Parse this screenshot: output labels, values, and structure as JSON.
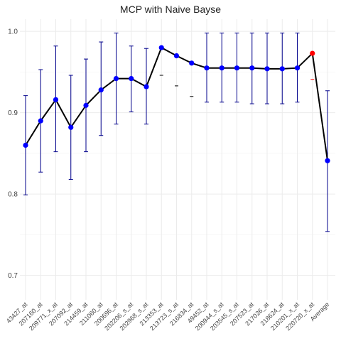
{
  "chart_data": {
    "type": "line",
    "title": "MCP with Naive Bayse",
    "xlabel": "",
    "ylabel": "",
    "ylim": [
      0.67,
      1.015
    ],
    "y_ticks": [
      0.7,
      0.8,
      0.9,
      1.0
    ],
    "y_tick_labels": [
      "0.7",
      "0.8",
      "0.9",
      "1.0"
    ],
    "grid": true,
    "categories": [
      "43427_at",
      "207160_at",
      "209771_x_at",
      "207092_at",
      "214459_at",
      "211060_at",
      "200696_at",
      "202206_s_at",
      "202968_s_at",
      "213353_at",
      "213723_s_at",
      "216834_at",
      "49452_at",
      "200944_s_at",
      "203545_s_at",
      "207523_at",
      "217026_at",
      "218624_at",
      "210201_x_at",
      "220720_x_at",
      "Average"
    ],
    "values": [
      0.86,
      0.89,
      0.916,
      0.882,
      0.909,
      0.928,
      0.942,
      0.942,
      0.932,
      0.98,
      0.97,
      0.961,
      0.955,
      0.955,
      0.955,
      0.955,
      0.954,
      0.954,
      0.955,
      0.973,
      0.841
    ],
    "err_low": [
      0.799,
      0.827,
      0.852,
      0.818,
      0.852,
      0.872,
      0.886,
      0.901,
      0.886,
      null,
      null,
      null,
      0.913,
      0.913,
      0.913,
      0.911,
      0.911,
      0.911,
      0.913,
      null,
      0.754
    ],
    "err_high": [
      0.921,
      0.953,
      0.982,
      0.946,
      0.966,
      0.987,
      0.998,
      0.982,
      0.979,
      null,
      null,
      null,
      0.998,
      0.998,
      0.998,
      0.998,
      0.998,
      0.998,
      0.998,
      null,
      0.927
    ],
    "side_marks": [
      null,
      null,
      null,
      null,
      null,
      null,
      null,
      null,
      null,
      0.946,
      0.933,
      0.92,
      null,
      null,
      null,
      null,
      null,
      null,
      null,
      0.941,
      null
    ],
    "highlight_index": 19,
    "colors": {
      "point": "#0000ff",
      "highlight_point": "#ff0000",
      "line": "#000000",
      "errorbar": "#00008b",
      "side_mark_dark": "#000000",
      "side_mark_highlight": "#ff0000",
      "grid": "#ebebeb"
    }
  }
}
